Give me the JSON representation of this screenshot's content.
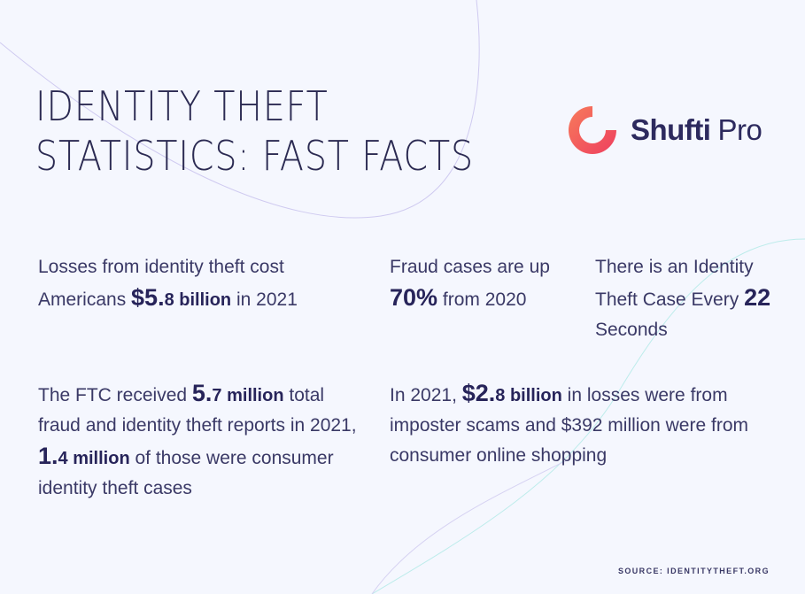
{
  "title": {
    "line1": "IDENTITY THEFT",
    "line2": "STATISTICS: FAST FACTS"
  },
  "logo": {
    "bold": "Shufti",
    "regular": "Pro",
    "icon": "shufti-pro-logo-icon",
    "brand_color": "#f0545a"
  },
  "facts": {
    "f1": {
      "pre": "Losses from identity theft cost Americans ",
      "num": "$5.",
      "strong": "8 billion",
      "post": " in 2021"
    },
    "f2": {
      "num": "70%",
      "pre": "Fraud cases are up ",
      "post": " from 2020"
    },
    "f3": {
      "pre": "There is an Identity Theft Case Every ",
      "num": "22",
      "post": " Seconds"
    },
    "f4": {
      "pre": "The FTC received ",
      "num1": "5.",
      "strong1": "7 million",
      "mid": " total fraud and identity theft reports in 2021, ",
      "num2": "1.",
      "strong2": "4 million",
      "post": " of those were consumer identity theft cases"
    },
    "f5": {
      "pre": "In 2021, ",
      "num": "$2.",
      "strong": "8 billion",
      "post": " in losses were from imposter scams and $392 million were from consumer online shopping"
    }
  },
  "source": "SOURCE: IDENTITYTHEFT.ORG",
  "colors": {
    "background": "#f5f7fe",
    "text": "#2b2a52",
    "curve_purple": "#c9c4ec",
    "curve_teal": "#b8ecec"
  }
}
